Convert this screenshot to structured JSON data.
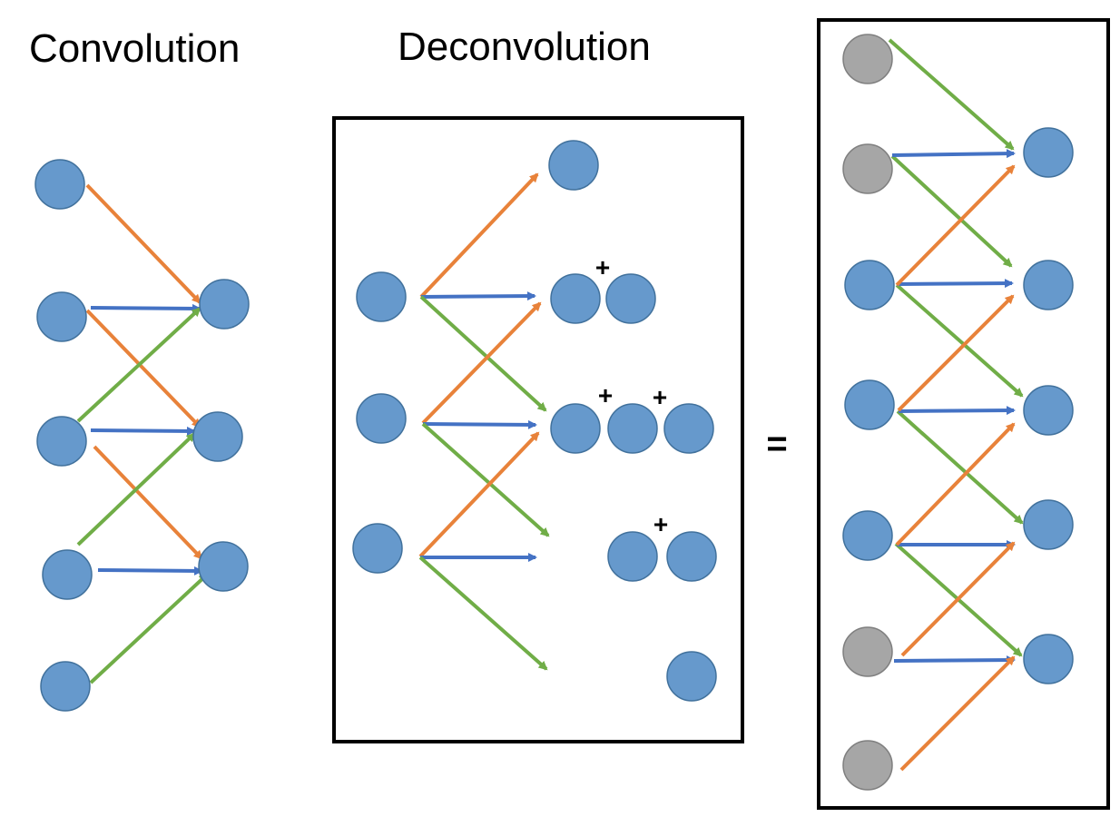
{
  "titles": {
    "convolution": "Convolution",
    "deconvolution": "Deconvolution"
  },
  "symbols": {
    "plus": "+",
    "equals": "="
  },
  "colors": {
    "node_fill": "#6699cc",
    "node_stroke": "#41719c",
    "padding_fill": "#a6a6a6",
    "padding_stroke": "#7f7f7f",
    "orange": "#e8823a",
    "blue": "#4472c4",
    "green": "#70ad47",
    "frame": "#000000"
  }
}
